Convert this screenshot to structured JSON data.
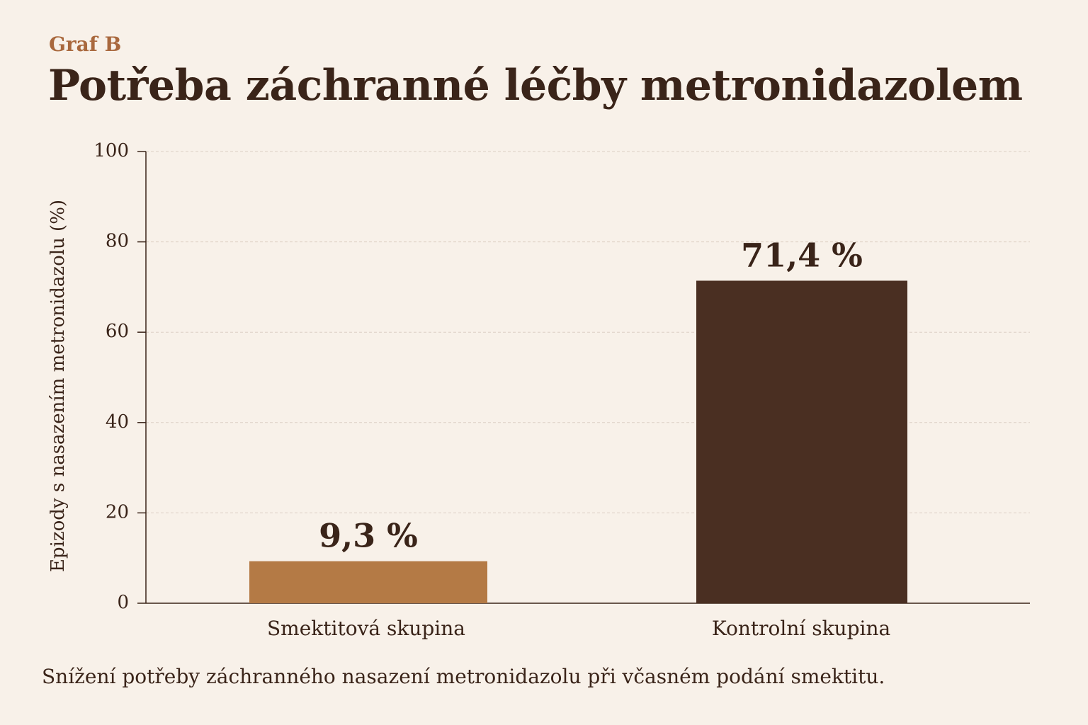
{
  "header": {
    "eyebrow": "Graf B",
    "title": "Potřeba záchranné léčby metronidazolem"
  },
  "caption": "Snížení potřeby záchranného nasazení metronidazolu při včasném podání smektitu.",
  "colors": {
    "background": "#f8f1e9",
    "text": "#3a2419",
    "accent": "#a9683d",
    "bar_smectite": "#b47a45",
    "bar_control": "#4a2f22",
    "grid": "#dcd0c4"
  },
  "chart_data": {
    "type": "bar",
    "categories": [
      "Smektitová skupina",
      "Kontrolní skupina"
    ],
    "values": [
      9.3,
      71.4
    ],
    "value_labels": [
      "9,3 %",
      "71,4 %"
    ],
    "bar_colors": [
      "#b47a45",
      "#4a2f22"
    ],
    "ylabel": "Epizody s nasazením metronidazolu (%)",
    "ylim": [
      0,
      100
    ],
    "yticks": [
      0,
      20,
      40,
      60,
      80,
      100
    ],
    "grid": true
  }
}
